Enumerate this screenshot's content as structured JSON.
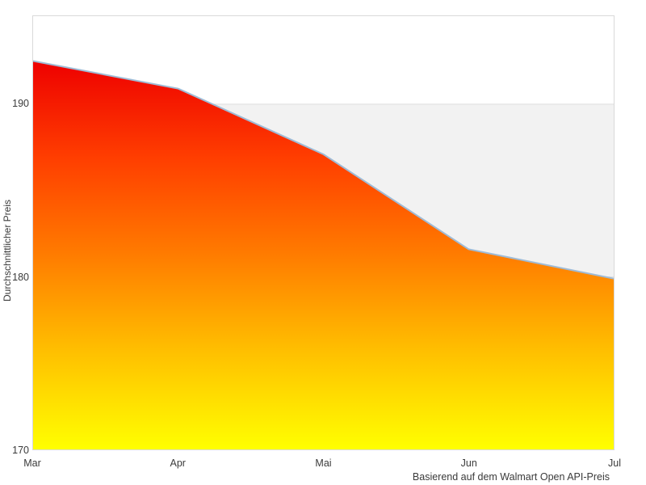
{
  "chart_data": {
    "type": "area",
    "x": [
      "Mar",
      "Apr",
      "Mai",
      "Jun",
      "Jul"
    ],
    "values": [
      192.5,
      190.9,
      187.1,
      181.6,
      179.9
    ],
    "series": [
      {
        "name": "Durchschnittlicher Preis",
        "values": [
          192.5,
          190.9,
          187.1,
          181.6,
          179.9
        ]
      }
    ],
    "title": "",
    "xlabel": "",
    "ylabel": "Durchschnittlicher Preis",
    "caption": "Basierend auf dem Walmart Open API-Preis",
    "ylim": [
      170,
      195.1
    ],
    "yticks": [
      190,
      180,
      170
    ],
    "grid": "horizontal-gridlines-at-yticks",
    "legend": "none",
    "plot_band": {
      "from": 170,
      "to": 190,
      "color": "#f2f2f2"
    },
    "colors": {
      "line": "#9fbbd6",
      "band": "#f2f2f2",
      "gridline": "#dedede",
      "plot_border": "#d9d9d9",
      "text": "#3a3a3a",
      "background": "#ffffff",
      "gradient_stops": [
        {
          "offset": 0,
          "color": "#ee0000"
        },
        {
          "offset": 0.25,
          "color": "#ff3e00"
        },
        {
          "offset": 0.5,
          "color": "#ff7c00"
        },
        {
          "offset": 0.75,
          "color": "#ffc000"
        },
        {
          "offset": 1,
          "color": "#ffff00"
        }
      ]
    }
  }
}
